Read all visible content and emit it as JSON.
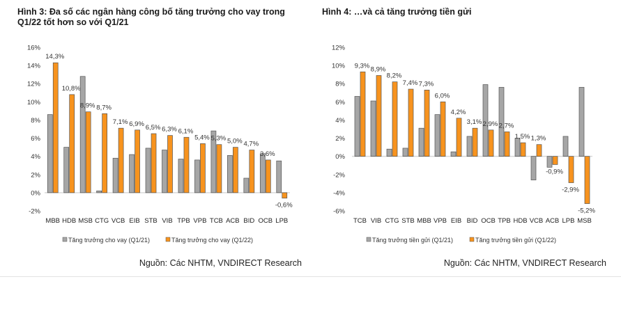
{
  "colors": {
    "q121": "#a6a6a6",
    "q122": "#f7931e",
    "outline": "#555555",
    "axis": "#d9d9d9"
  },
  "chart_data": [
    {
      "type": "bar",
      "title": "Hình 3: Đa số các ngân hàng công bố tăng trưởng cho vay trong Q1/22 tốt hơn so với Q1/21",
      "categories": [
        "MBB",
        "HDB",
        "MSB",
        "CTG",
        "VCB",
        "EIB",
        "STB",
        "VIB",
        "TPB",
        "VPB",
        "TCB",
        "ACB",
        "BID",
        "OCB",
        "LPB"
      ],
      "series": [
        {
          "name": "Tăng trưởng cho vay (Q1/21)",
          "values": [
            8.6,
            5.0,
            12.8,
            0.2,
            3.8,
            4.2,
            4.9,
            4.7,
            3.7,
            3.6,
            6.8,
            4.1,
            1.6,
            4.3,
            3.5
          ]
        },
        {
          "name": "Tăng trưởng cho vay (Q1/22)",
          "values": [
            14.3,
            10.8,
            8.9,
            8.7,
            7.1,
            6.9,
            6.5,
            6.3,
            6.1,
            5.4,
            5.3,
            5.0,
            4.7,
            3.6,
            -0.6
          ],
          "labels": [
            "14,3%",
            "10,8%",
            "8,9%",
            "8,7%",
            "7,1%",
            "6,9%",
            "6,5%",
            "6,3%",
            "6,1%",
            "5,4%",
            "5,3%",
            "5,0%",
            "4,7%",
            "3,6%",
            "-0,6%"
          ]
        }
      ],
      "yticks": [
        "16%",
        "14%",
        "12%",
        "10%",
        "8%",
        "6%",
        "4%",
        "2%",
        "0%",
        "-2%"
      ],
      "ylim": [
        -2,
        16
      ],
      "ylabel": "",
      "xlabel": "",
      "legend": "bottom",
      "source": "Nguồn: Các NHTM, VNDIRECT Research"
    },
    {
      "type": "bar",
      "title": "Hình 4: …và cả tăng trưởng tiền gửi",
      "categories": [
        "TCB",
        "VIB",
        "CTG",
        "STB",
        "MBB",
        "VPB",
        "EIB",
        "BID",
        "OCB",
        "TPB",
        "HDB",
        "VCB",
        "ACB",
        "LPB",
        "MSB"
      ],
      "series": [
        {
          "name": "Tăng trưởng tiền gửi (Q1/21)",
          "values": [
            6.6,
            6.1,
            0.8,
            0.9,
            3.1,
            4.6,
            0.5,
            2.2,
            7.9,
            7.6,
            2.0,
            -2.6,
            -1.2,
            2.2,
            7.6
          ]
        },
        {
          "name": "Tăng trưởng tiền gửi (Q1/22)",
          "values": [
            9.3,
            8.9,
            8.2,
            7.4,
            7.3,
            6.0,
            4.2,
            3.1,
            2.9,
            2.7,
            1.5,
            1.3,
            -0.9,
            -2.9,
            -5.2
          ],
          "labels": [
            "9,3%",
            "8,9%",
            "8,2%",
            "7,4%",
            "7,3%",
            "6,0%",
            "4,2%",
            "3,1%",
            "2,9%",
            "2,7%",
            "1,5%",
            "1,3%",
            "-0,9%",
            "-2,9%",
            "-5,2%"
          ]
        }
      ],
      "yticks": [
        "12%",
        "10%",
        "8%",
        "6%",
        "4%",
        "2%",
        "0%",
        "-2%",
        "-4%",
        "-6%"
      ],
      "ylim": [
        -6,
        12
      ],
      "ylabel": "",
      "xlabel": "",
      "legend": "bottom",
      "source": "Nguồn: Các NHTM, VNDIRECT Research"
    }
  ]
}
